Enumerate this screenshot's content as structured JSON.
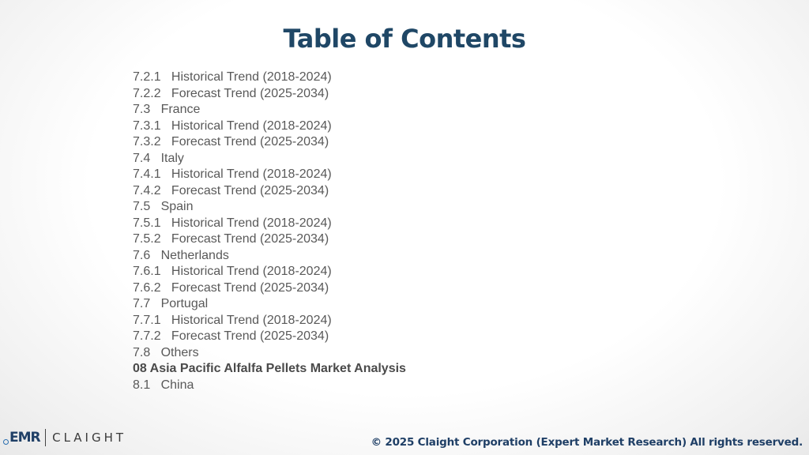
{
  "title": "Table of Contents",
  "toc": [
    {
      "text": "7.2.1   Historical Trend (2018-2024)",
      "bold": false
    },
    {
      "text": "7.2.2   Forecast Trend (2025-2034)",
      "bold": false
    },
    {
      "text": "7.3   France",
      "bold": false
    },
    {
      "text": "7.3.1   Historical Trend (2018-2024)",
      "bold": false
    },
    {
      "text": "7.3.2   Forecast Trend (2025-2034)",
      "bold": false
    },
    {
      "text": "7.4   Italy",
      "bold": false
    },
    {
      "text": "7.4.1   Historical Trend (2018-2024)",
      "bold": false
    },
    {
      "text": "7.4.2   Forecast Trend (2025-2034)",
      "bold": false
    },
    {
      "text": "7.5   Spain",
      "bold": false
    },
    {
      "text": "7.5.1   Historical Trend (2018-2024)",
      "bold": false
    },
    {
      "text": "7.5.2   Forecast Trend (2025-2034)",
      "bold": false
    },
    {
      "text": "7.6   Netherlands",
      "bold": false
    },
    {
      "text": "7.6.1   Historical Trend (2018-2024)",
      "bold": false
    },
    {
      "text": "7.6.2   Forecast Trend (2025-2034)",
      "bold": false
    },
    {
      "text": "7.7   Portugal",
      "bold": false
    },
    {
      "text": "7.7.1   Historical Trend (2018-2024)",
      "bold": false
    },
    {
      "text": "7.7.2   Forecast Trend (2025-2034)",
      "bold": false
    },
    {
      "text": "7.8   Others",
      "bold": false
    },
    {
      "text": "08 Asia Pacific Alfalfa Pellets Market Analysis",
      "bold": true
    },
    {
      "text": "8.1   China",
      "bold": false
    }
  ],
  "logo": {
    "left_text": "EMR",
    "right_text": "CLAIGHT"
  },
  "footer": {
    "copyright": "© 2025 Claight Corporation (Expert Market Research) All rights reserved."
  },
  "colors": {
    "title": "#1f4766",
    "body_text": "#595959",
    "footer_text": "#1f3f66"
  }
}
